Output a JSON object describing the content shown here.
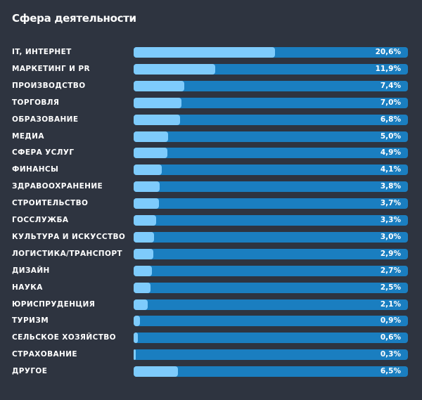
{
  "chart_data": {
    "type": "bar",
    "orientation": "horizontal",
    "title": "Сфера деятельности",
    "xlim": [
      0,
      40
    ],
    "grid": false,
    "colors": {
      "background": "#2e3440",
      "track": "#1a7ec0",
      "fill": "#7ecbfc",
      "text": "#ffffff"
    },
    "categories": [
      "IT, ИНТЕРНЕТ",
      "МАРКЕТИНГ И PR",
      "ПРОИЗВОДСТВО",
      "ТОРГОВЛЯ",
      "ОБРАЗОВАНИЕ",
      "МЕДИА",
      "СФЕРА УСЛУГ",
      "ФИНАНСЫ",
      "ЗДРАВООХРАНЕНИЕ",
      "СТРОИТЕЛЬСТВО",
      "ГОССЛУЖБА",
      "КУЛЬТУРА И ИСКУССТВО",
      "ЛОГИСТИКА/ТРАНСПОРТ",
      "ДИЗАЙН",
      "НАУКА",
      "ЮРИСПРУДЕНЦИЯ",
      "ТУРИЗМ",
      "СЕЛЬСКОЕ ХОЗЯЙСТВО",
      "СТРАХОВАНИЕ",
      "ДРУГОЕ"
    ],
    "values": [
      20.6,
      11.9,
      7.4,
      7.0,
      6.8,
      5.0,
      4.9,
      4.1,
      3.8,
      3.7,
      3.3,
      3.0,
      2.9,
      2.7,
      2.5,
      2.1,
      0.9,
      0.6,
      0.3,
      6.5
    ],
    "value_labels": [
      "20,6%",
      "11,9%",
      "7,4%",
      "7,0%",
      "6,8%",
      "5,0%",
      "4,9%",
      "4,1%",
      "3,8%",
      "3,7%",
      "3,3%",
      "3,0%",
      "2,9%",
      "2,7%",
      "2,5%",
      "2,1%",
      "0,9%",
      "0,6%",
      "0,3%",
      "6,5%"
    ]
  }
}
